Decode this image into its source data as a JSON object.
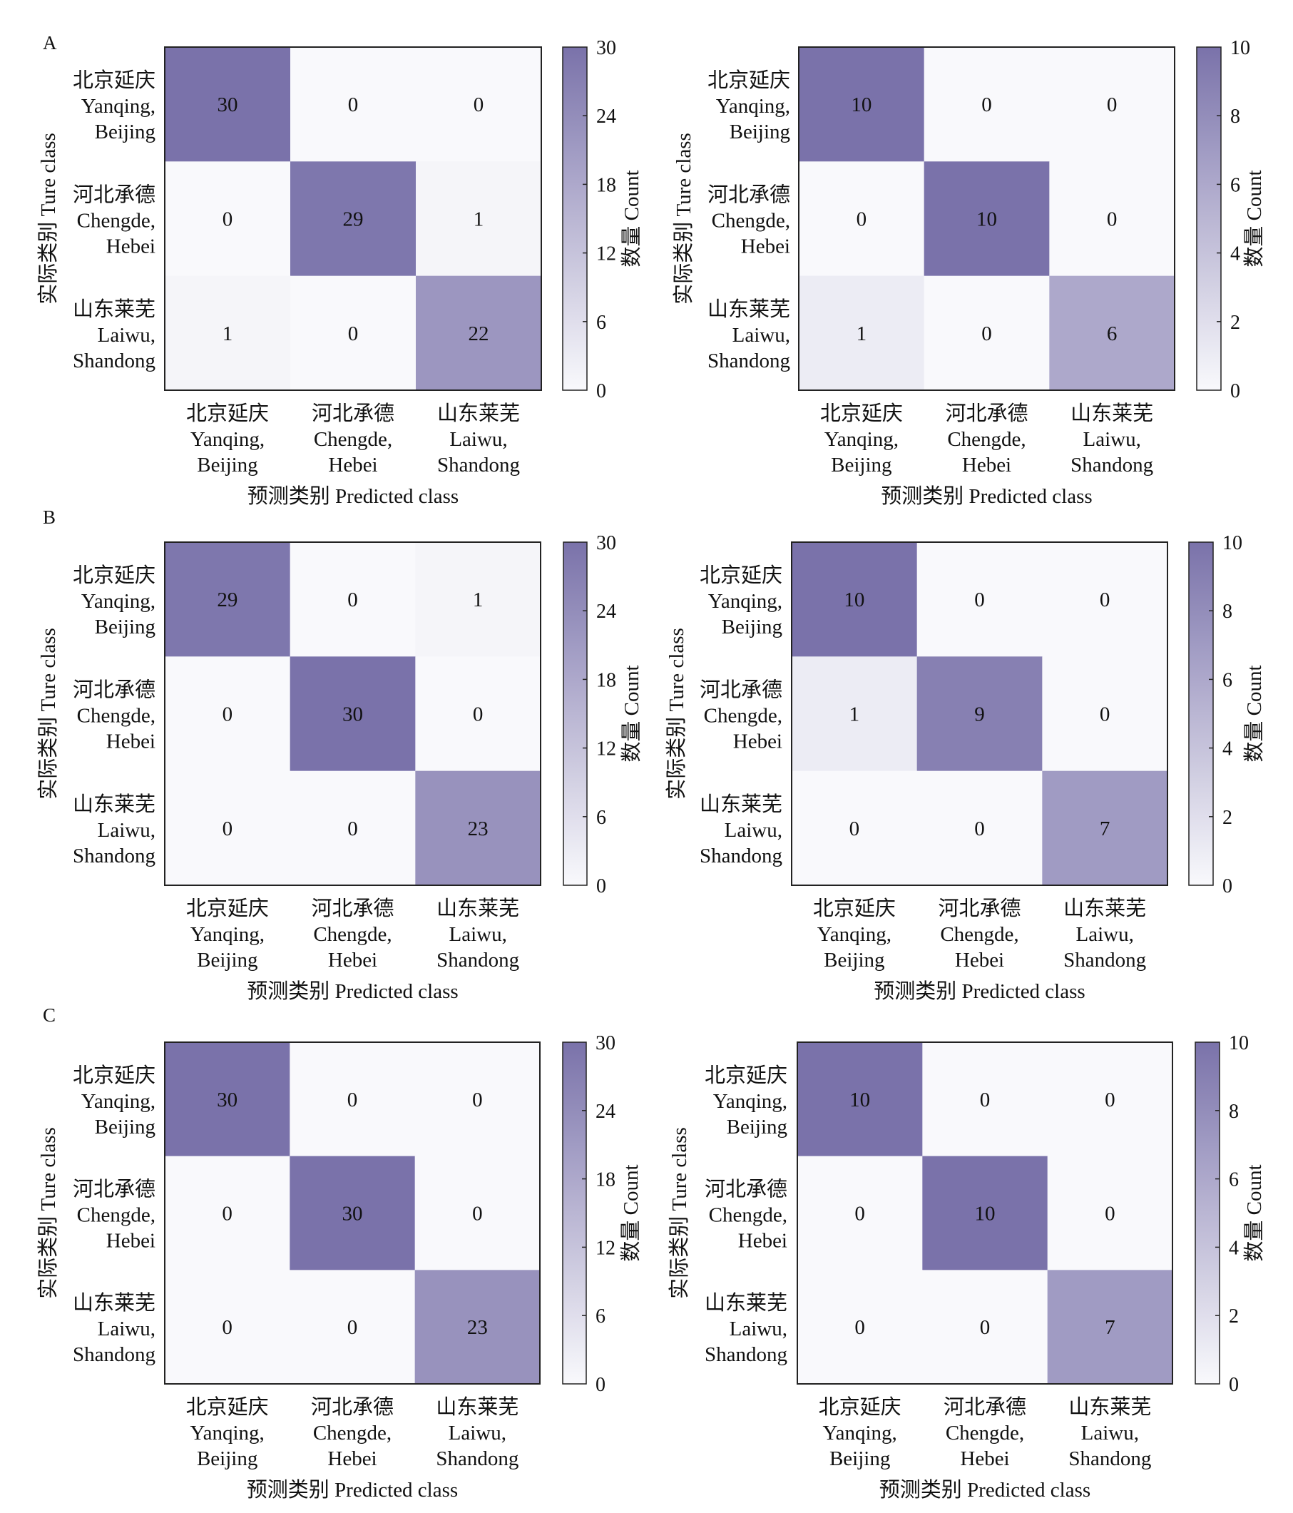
{
  "figure": {
    "panel_letters": [
      "A",
      "B",
      "C"
    ]
  },
  "colormap": {
    "low": "#f9f9fc",
    "high": "#7a72aa"
  },
  "chart_data": [
    {
      "type": "heatmap",
      "panel": "A",
      "position": "left",
      "title": "",
      "xlabel": "预测类别 Predicted class",
      "ylabel": "实际类别 Ture class",
      "x_categories": [
        [
          "北京延庆",
          "Yanqing,",
          "Beijing"
        ],
        [
          "河北承德",
          "Chengde,",
          "Hebei"
        ],
        [
          "山东莱芜",
          "Laiwu,",
          "Shandong"
        ]
      ],
      "y_categories": [
        [
          "北京延庆",
          "Yanqing,",
          "Beijing"
        ],
        [
          "河北承德",
          "Chengde,",
          "Hebei"
        ],
        [
          "山东莱芜",
          "Laiwu,",
          "Shandong"
        ]
      ],
      "values": [
        [
          30,
          0,
          0
        ],
        [
          0,
          29,
          1
        ],
        [
          1,
          0,
          22
        ]
      ],
      "colorbar": {
        "label": "数量 Count",
        "range": [
          0,
          30
        ],
        "ticks": [
          0,
          6,
          12,
          18,
          24,
          30
        ]
      }
    },
    {
      "type": "heatmap",
      "panel": "A",
      "position": "right",
      "title": "",
      "xlabel": "预测类别 Predicted class",
      "ylabel": "实际类别 Ture class",
      "x_categories": [
        [
          "北京延庆",
          "Yanqing,",
          "Beijing"
        ],
        [
          "河北承德",
          "Chengde,",
          "Hebei"
        ],
        [
          "山东莱芜",
          "Laiwu,",
          "Shandong"
        ]
      ],
      "y_categories": [
        [
          "北京延庆",
          "Yanqing,",
          "Beijing"
        ],
        [
          "河北承德",
          "Chengde,",
          "Hebei"
        ],
        [
          "山东莱芜",
          "Laiwu,",
          "Shandong"
        ]
      ],
      "values": [
        [
          10,
          0,
          0
        ],
        [
          0,
          10,
          0
        ],
        [
          1,
          0,
          6
        ]
      ],
      "colorbar": {
        "label": "数量 Count",
        "range": [
          0,
          10
        ],
        "ticks": [
          0,
          2,
          4,
          6,
          8,
          10
        ]
      }
    },
    {
      "type": "heatmap",
      "panel": "B",
      "position": "left",
      "title": "",
      "xlabel": "预测类别 Predicted class",
      "ylabel": "实际类别 Ture class",
      "x_categories": [
        [
          "北京延庆",
          "Yanqing,",
          "Beijing"
        ],
        [
          "河北承德",
          "Chengde,",
          "Hebei"
        ],
        [
          "山东莱芜",
          "Laiwu,",
          "Shandong"
        ]
      ],
      "y_categories": [
        [
          "北京延庆",
          "Yanqing,",
          "Beijing"
        ],
        [
          "河北承德",
          "Chengde,",
          "Hebei"
        ],
        [
          "山东莱芜",
          "Laiwu,",
          "Shandong"
        ]
      ],
      "values": [
        [
          29,
          0,
          1
        ],
        [
          0,
          30,
          0
        ],
        [
          0,
          0,
          23
        ]
      ],
      "colorbar": {
        "label": "数量 Count",
        "range": [
          0,
          30
        ],
        "ticks": [
          0,
          6,
          12,
          18,
          24,
          30
        ]
      }
    },
    {
      "type": "heatmap",
      "panel": "B",
      "position": "right",
      "title": "",
      "xlabel": "预测类别 Predicted class",
      "ylabel": "实际类别 Ture class",
      "x_categories": [
        [
          "北京延庆",
          "Yanqing,",
          "Beijing"
        ],
        [
          "河北承德",
          "Chengde,",
          "Hebei"
        ],
        [
          "山东莱芜",
          "Laiwu,",
          "Shandong"
        ]
      ],
      "y_categories": [
        [
          "北京延庆",
          "Yanqing,",
          "Beijing"
        ],
        [
          "河北承德",
          "Chengde,",
          "Hebei"
        ],
        [
          "山东莱芜",
          "Laiwu,",
          "Shandong"
        ]
      ],
      "values": [
        [
          10,
          0,
          0
        ],
        [
          1,
          9,
          0
        ],
        [
          0,
          0,
          7
        ]
      ],
      "colorbar": {
        "label": "数量 Count",
        "range": [
          0,
          10
        ],
        "ticks": [
          0,
          2,
          4,
          6,
          8,
          10
        ]
      }
    },
    {
      "type": "heatmap",
      "panel": "C",
      "position": "left",
      "title": "",
      "xlabel": "预测类别 Predicted class",
      "ylabel": "实际类别 Ture class",
      "x_categories": [
        [
          "北京延庆",
          "Yanqing,",
          "Beijing"
        ],
        [
          "河北承德",
          "Chengde,",
          "Hebei"
        ],
        [
          "山东莱芜",
          "Laiwu,",
          "Shandong"
        ]
      ],
      "y_categories": [
        [
          "北京延庆",
          "Yanqing,",
          "Beijing"
        ],
        [
          "河北承德",
          "Chengde,",
          "Hebei"
        ],
        [
          "山东莱芜",
          "Laiwu,",
          "Shandong"
        ]
      ],
      "values": [
        [
          30,
          0,
          0
        ],
        [
          0,
          30,
          0
        ],
        [
          0,
          0,
          23
        ]
      ],
      "colorbar": {
        "label": "数量 Count",
        "range": [
          0,
          30
        ],
        "ticks": [
          0,
          6,
          12,
          18,
          24,
          30
        ]
      }
    },
    {
      "type": "heatmap",
      "panel": "C",
      "position": "right",
      "title": "",
      "xlabel": "预测类别 Predicted class",
      "ylabel": "实际类别 Ture class",
      "x_categories": [
        [
          "北京延庆",
          "Yanqing,",
          "Beijing"
        ],
        [
          "河北承德",
          "Chengde,",
          "Hebei"
        ],
        [
          "山东莱芜",
          "Laiwu,",
          "Shandong"
        ]
      ],
      "y_categories": [
        [
          "北京延庆",
          "Yanqing,",
          "Beijing"
        ],
        [
          "河北承德",
          "Chengde,",
          "Hebei"
        ],
        [
          "山东莱芜",
          "Laiwu,",
          "Shandong"
        ]
      ],
      "values": [
        [
          10,
          0,
          0
        ],
        [
          0,
          10,
          0
        ],
        [
          0,
          0,
          7
        ]
      ],
      "colorbar": {
        "label": "数量 Count",
        "range": [
          0,
          10
        ],
        "ticks": [
          0,
          2,
          4,
          6,
          8,
          10
        ]
      }
    }
  ]
}
